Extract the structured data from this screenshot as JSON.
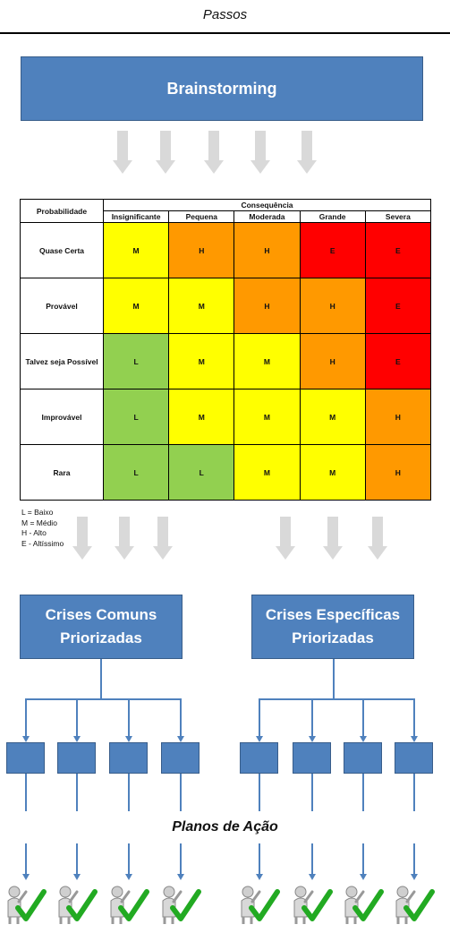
{
  "page": {
    "title": "Passos"
  },
  "brainstorm": {
    "label": "Brainstorming"
  },
  "matrix": {
    "row_header": "Probabilidade",
    "col_header": "Consequência",
    "columns": [
      "Insignificante",
      "Pequena",
      "Moderada",
      "Grande",
      "Severa"
    ],
    "rows": [
      {
        "label": "Quase Certa",
        "cells": [
          "M",
          "H",
          "H",
          "E",
          "E"
        ]
      },
      {
        "label": "Provável",
        "cells": [
          "M",
          "M",
          "H",
          "H",
          "E"
        ]
      },
      {
        "label": "Talvez seja Possível",
        "cells": [
          "L",
          "M",
          "M",
          "H",
          "E"
        ]
      },
      {
        "label": "Improvável",
        "cells": [
          "L",
          "M",
          "M",
          "M",
          "H"
        ]
      },
      {
        "label": "Rara",
        "cells": [
          "L",
          "L",
          "M",
          "M",
          "H"
        ]
      }
    ],
    "colors": {
      "L": "#92d050",
      "M": "#ffff00",
      "H": "#ff9900",
      "E": "#ff0000"
    }
  },
  "legend": [
    "L = Baixo",
    "M = Médio",
    "H - Alto",
    "E - Altíssimo"
  ],
  "crises": {
    "comuns": "Crises Comuns\nPriorizadas",
    "especificas": "Crises Específicas\nPriorizadas"
  },
  "planos": {
    "label": "Planos de Ação"
  },
  "colors": {
    "box_fill": "#4f81bd",
    "box_border": "#385d8a",
    "arrow_gray": "#d9d9d9",
    "check_green": "#22aa22"
  }
}
